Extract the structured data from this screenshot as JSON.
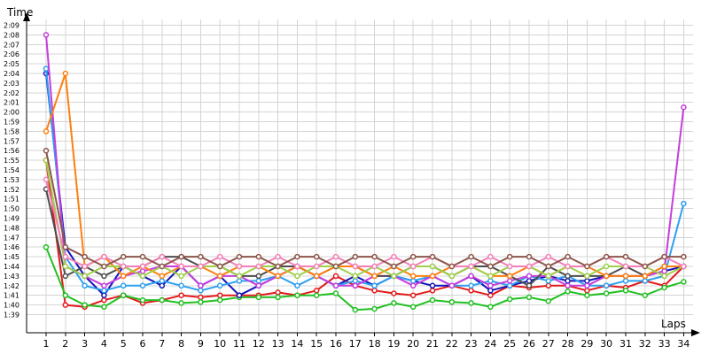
{
  "chart_data": {
    "type": "line",
    "ylabel": "Time",
    "xlabel": "Laps",
    "x": [
      1,
      2,
      3,
      4,
      5,
      6,
      7,
      8,
      9,
      10,
      11,
      12,
      13,
      14,
      15,
      16,
      17,
      18,
      19,
      20,
      21,
      22,
      23,
      24,
      25,
      26,
      27,
      28,
      29,
      30,
      31,
      32,
      33,
      34
    ],
    "y_ticks": [
      "1:39",
      "1:40",
      "1:41",
      "1:42",
      "1:43",
      "1:44",
      "1:45",
      "1:46",
      "1:47",
      "1:48",
      "1:49",
      "1:50",
      "1:51",
      "1:52",
      "1:53",
      "1:54",
      "1:55",
      "1:56",
      "1:57",
      "1:58",
      "1:59",
      "2:00",
      "2:01",
      "2:02",
      "2:03",
      "2:04",
      "2:05",
      "2:06",
      "2:07",
      "2:08",
      "2:09"
    ],
    "ylim_seconds": [
      99,
      129
    ],
    "grid": true,
    "series": [
      {
        "color": "#e31a1c",
        "values": [
          115,
          100,
          99.8,
          100.5,
          101,
          100.2,
          100.5,
          101,
          100.8,
          101,
          101,
          101,
          101.3,
          101,
          101.5,
          103,
          102,
          101.5,
          101.2,
          101,
          101.5,
          102,
          101.5,
          101,
          102,
          101.8,
          102,
          102,
          101.5,
          102,
          101.8,
          102.5,
          102,
          104
        ]
      },
      {
        "color": "#22c022",
        "values": [
          106,
          101,
          100,
          99.8,
          101,
          100.5,
          100.5,
          100.2,
          100.3,
          100.5,
          100.8,
          100.8,
          100.8,
          101,
          101,
          101.2,
          99.5,
          99.6,
          100.2,
          99.8,
          100.5,
          100.3,
          100.2,
          99.8,
          100.6,
          100.8,
          100.4,
          101.4,
          101,
          101.2,
          101.5,
          101,
          101.8,
          102.4
        ]
      },
      {
        "color": "#1515b8",
        "values": [
          124,
          106,
          103,
          101,
          104,
          103,
          102,
          104,
          102,
          103,
          101,
          102,
          103,
          104,
          103,
          102,
          103,
          102,
          103,
          102.5,
          102,
          102,
          103,
          101.5,
          102,
          102.5,
          103,
          102.5,
          102.5,
          103,
          103,
          103,
          103.5,
          104
        ]
      },
      {
        "color": "#2ea0f0",
        "values": [
          124.5,
          105,
          102,
          101.5,
          102,
          102,
          102.5,
          102,
          101.5,
          102,
          102.5,
          102.5,
          103,
          102,
          103,
          102,
          102.5,
          102,
          103,
          102.5,
          103,
          102,
          102,
          102.5,
          102,
          103,
          102.5,
          103,
          102,
          102,
          102.5,
          102.5,
          103,
          110.5
        ]
      },
      {
        "color": "#c53edc",
        "values": [
          128,
          104,
          103,
          102,
          103,
          103.5,
          104,
          104,
          102,
          103,
          103,
          102,
          103,
          104,
          103,
          102,
          102,
          103,
          103,
          102,
          103,
          102,
          103,
          102,
          102.5,
          103,
          103,
          102,
          102,
          103,
          103,
          103,
          103.5,
          120.5
        ]
      },
      {
        "color": "#4d4d4d",
        "values": [
          112,
          103,
          104,
          103,
          104,
          104,
          105,
          105,
          104,
          104,
          103,
          103,
          104,
          104,
          103,
          104,
          104,
          103,
          103,
          104,
          104,
          103,
          104,
          104,
          103,
          102,
          104,
          103,
          103,
          103,
          104,
          103,
          104,
          104
        ]
      },
      {
        "color": "#ff7f0e",
        "values": [
          118,
          124,
          104,
          105,
          103,
          104,
          103,
          104,
          104,
          103,
          104,
          104,
          103,
          104,
          103,
          104,
          104,
          103,
          104,
          103,
          103,
          104,
          104,
          103,
          103,
          104,
          103,
          104,
          104,
          103,
          103,
          103,
          104,
          104
        ]
      },
      {
        "color": "#9fd04a",
        "values": [
          115,
          104,
          103,
          104,
          104,
          103,
          104,
          103,
          104,
          104,
          103,
          104,
          104,
          103,
          104,
          104,
          103,
          104,
          103,
          104,
          104,
          103,
          104,
          103,
          104,
          104,
          103,
          104,
          103,
          104,
          104,
          104,
          103,
          104
        ]
      },
      {
        "color": "#f47fb8",
        "values": [
          113,
          105,
          104,
          105,
          104,
          104,
          105,
          104,
          104,
          105,
          104,
          104,
          105,
          104,
          104,
          105,
          104,
          104,
          105,
          104,
          105,
          104,
          104,
          105,
          104,
          104,
          105,
          104,
          104,
          105,
          104,
          104,
          105,
          104
        ]
      },
      {
        "color": "#8c564b",
        "values": [
          116,
          106,
          105,
          104,
          105,
          105,
          104,
          105,
          105,
          104,
          105,
          105,
          104,
          105,
          105,
          104,
          105,
          105,
          104,
          105,
          105,
          104,
          105,
          104,
          105,
          105,
          104,
          105,
          104,
          105,
          105,
          104,
          105,
          105
        ]
      }
    ]
  }
}
